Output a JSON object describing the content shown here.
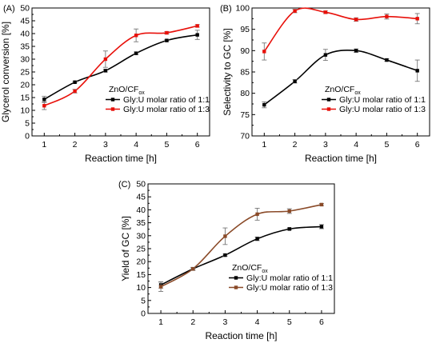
{
  "chart_data": [
    {
      "type": "line",
      "panel_label": "(A)",
      "xlabel": "Reaction time [h]",
      "ylabel": "Glycerol conversion [%]",
      "x": [
        1,
        2,
        3,
        4,
        5,
        6
      ],
      "xlim": [
        0.6,
        6.4
      ],
      "ylim": [
        0,
        50
      ],
      "yticks": [
        0,
        5,
        10,
        15,
        20,
        25,
        30,
        35,
        40,
        45,
        50
      ],
      "legend_title": "ZnO/CF",
      "legend_title_sub": "ox",
      "legend_position": "bottom-right",
      "series": [
        {
          "name": "Gly:U molar ratio of 1:1",
          "color": "#000000",
          "values": [
            14.3,
            21.0,
            25.5,
            32.3,
            37.3,
            39.5
          ],
          "errors": [
            1.2,
            0.3,
            0.5,
            0.5,
            0.4,
            1.8
          ]
        },
        {
          "name": "Gly:U molar ratio of 1:3",
          "color": "#e8100a",
          "values": [
            11.8,
            17.5,
            30.0,
            39.3,
            40.3,
            43.0
          ],
          "errors": [
            1.5,
            0.7,
            3.2,
            2.5,
            0.5,
            0.5
          ]
        }
      ]
    },
    {
      "type": "line",
      "panel_label": "(B)",
      "xlabel": "Reaction time [h]",
      "ylabel": "Selectivity to GC [%]",
      "x": [
        1,
        2,
        3,
        4,
        5,
        6
      ],
      "xlim": [
        0.6,
        6.4
      ],
      "ylim": [
        70,
        100
      ],
      "yticks": [
        70,
        75,
        80,
        85,
        90,
        95,
        100
      ],
      "legend_title": "ZnO/CF",
      "legend_title_sub": "ox",
      "legend_position": "bottom-right",
      "series": [
        {
          "name": "Gly:U molar ratio of 1:1",
          "color": "#000000",
          "values": [
            77.3,
            82.8,
            89.0,
            90.0,
            87.8,
            85.3
          ],
          "errors": [
            0.7,
            0.4,
            1.3,
            0.4,
            0.3,
            2.5
          ]
        },
        {
          "name": "Gly:U molar ratio of 1:3",
          "color": "#e8100a",
          "values": [
            89.8,
            99.3,
            99.0,
            97.3,
            98.0,
            97.5
          ],
          "errors": [
            2.0,
            0.4,
            0.3,
            0.4,
            0.6,
            1.2
          ]
        }
      ]
    },
    {
      "type": "line",
      "panel_label": "(C)",
      "xlabel": "Reaction time [h]",
      "ylabel": "Yield of GC [%]",
      "x": [
        1,
        2,
        3,
        4,
        5,
        6
      ],
      "xlim": [
        0.6,
        6.4
      ],
      "ylim": [
        0,
        50
      ],
      "yticks": [
        0,
        5,
        10,
        15,
        20,
        25,
        30,
        35,
        40,
        45,
        50
      ],
      "legend_title": "ZnO/CF",
      "legend_title_sub": "ox",
      "legend_position": "bottom-right",
      "series": [
        {
          "name": "Gly:U molar ratio of 1:1",
          "color": "#000000",
          "values": [
            11.0,
            17.2,
            22.5,
            28.8,
            32.6,
            33.5
          ],
          "errors": [
            1.2,
            0.4,
            0.4,
            0.7,
            0.4,
            0.8
          ]
        },
        {
          "name": "Gly:U molar ratio of 1:3",
          "color": "#8a4a28",
          "values": [
            10.3,
            17.2,
            29.8,
            38.3,
            39.5,
            42.0
          ],
          "errors": [
            1.8,
            0.6,
            3.2,
            2.3,
            0.9,
            0.4
          ]
        }
      ]
    }
  ]
}
